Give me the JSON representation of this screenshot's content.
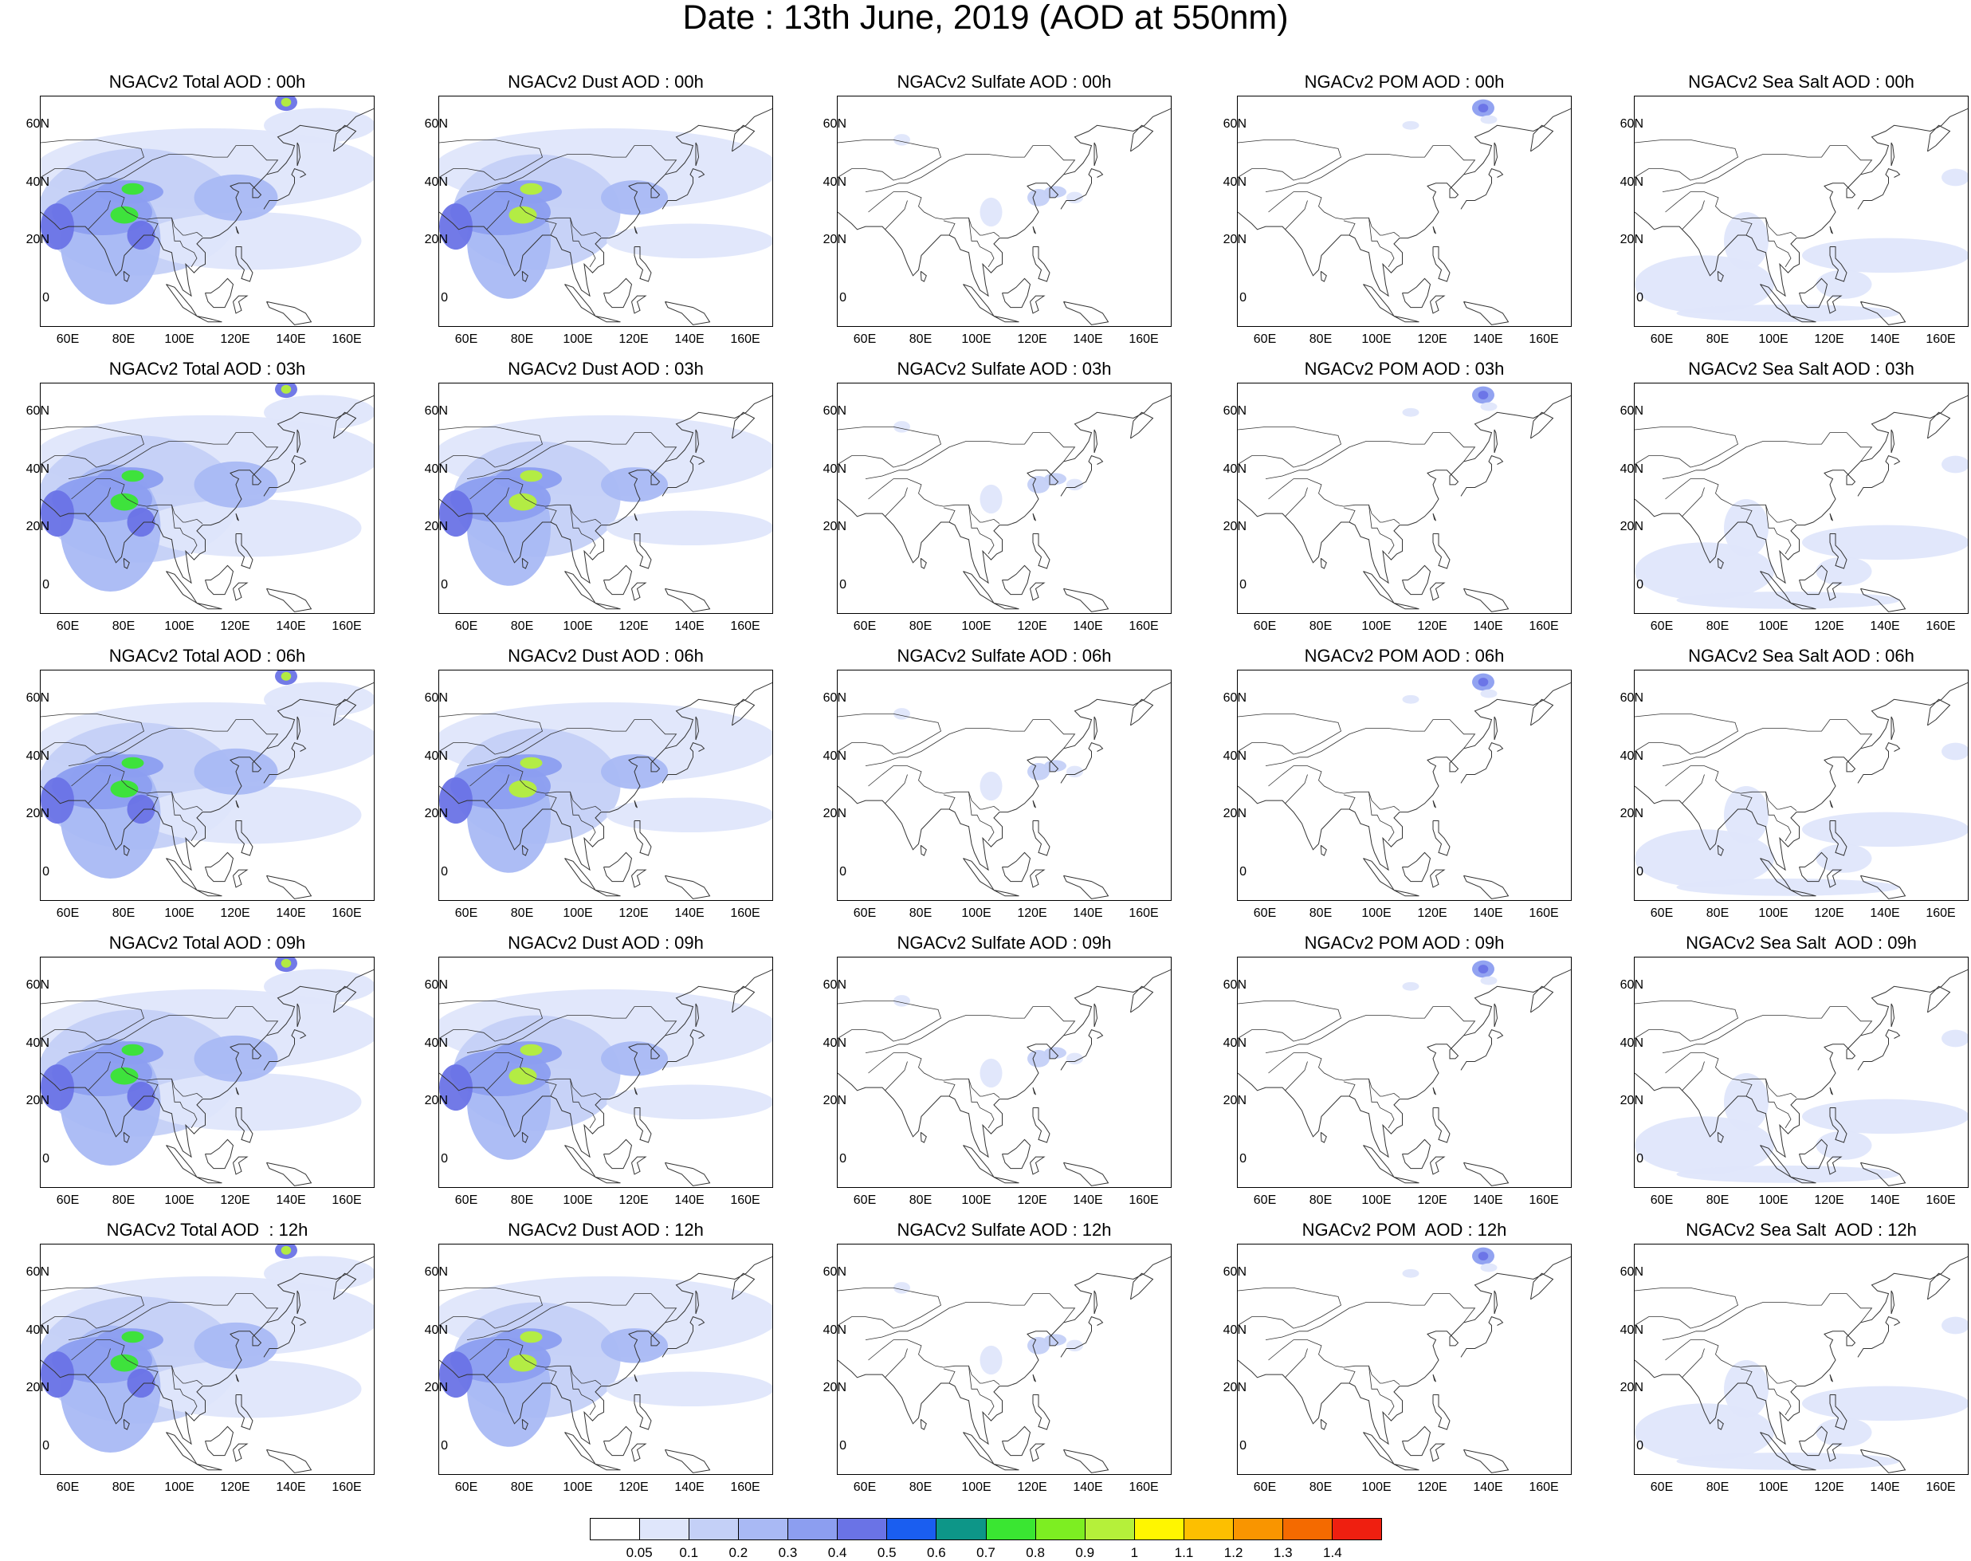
{
  "title": "Date : 13th June, 2019 (AOD at 550nm)",
  "axes": {
    "lat_ticks": [
      "60N",
      "40N",
      "20N",
      "0"
    ],
    "lat_values": [
      60,
      40,
      20,
      0
    ],
    "lon_ticks": [
      "60E",
      "80E",
      "100E",
      "120E",
      "140E",
      "160E"
    ],
    "lon_values": [
      60,
      80,
      100,
      120,
      140,
      160
    ],
    "lon_range": [
      50,
      170
    ],
    "lat_range": [
      -10,
      70
    ]
  },
  "panels": [
    {
      "title": "NGACv2 Total AOD : 00h",
      "species": "total"
    },
    {
      "title": "NGACv2 Dust AOD : 00h",
      "species": "dust"
    },
    {
      "title": "NGACv2 Sulfate AOD : 00h",
      "species": "sulfate"
    },
    {
      "title": "NGACv2 POM AOD : 00h",
      "species": "pom"
    },
    {
      "title": "NGACv2 Sea Salt AOD : 00h",
      "species": "seasalt"
    },
    {
      "title": "NGACv2 Total AOD : 03h",
      "species": "total"
    },
    {
      "title": "NGACv2 Dust AOD : 03h",
      "species": "dust"
    },
    {
      "title": "NGACv2 Sulfate AOD : 03h",
      "species": "sulfate"
    },
    {
      "title": "NGACv2 POM AOD : 03h",
      "species": "pom"
    },
    {
      "title": "NGACv2 Sea Salt AOD : 03h",
      "species": "seasalt"
    },
    {
      "title": "NGACv2 Total AOD : 06h",
      "species": "total"
    },
    {
      "title": "NGACv2 Dust AOD : 06h",
      "species": "dust"
    },
    {
      "title": "NGACv2 Sulfate AOD : 06h",
      "species": "sulfate"
    },
    {
      "title": "NGACv2 POM AOD : 06h",
      "species": "pom"
    },
    {
      "title": "NGACv2 Sea Salt AOD : 06h",
      "species": "seasalt"
    },
    {
      "title": "NGACv2 Total AOD : 09h",
      "species": "total"
    },
    {
      "title": "NGACv2 Dust AOD : 09h",
      "species": "dust"
    },
    {
      "title": "NGACv2 Sulfate AOD : 09h",
      "species": "sulfate"
    },
    {
      "title": "NGACv2 POM AOD : 09h",
      "species": "pom"
    },
    {
      "title": "NGACv2 Sea Salt  AOD : 09h",
      "species": "seasalt"
    },
    {
      "title": "NGACv2 Total AOD  : 12h",
      "species": "total"
    },
    {
      "title": "NGACv2 Dust AOD : 12h",
      "species": "dust"
    },
    {
      "title": "NGACv2 Sulfate AOD : 12h",
      "species": "sulfate"
    },
    {
      "title": "NGACv2 POM  AOD : 12h",
      "species": "pom"
    },
    {
      "title": "NGACv2 Sea Salt  AOD : 12h",
      "species": "seasalt"
    }
  ],
  "colorbar": {
    "labels": [
      "0.05",
      "0.1",
      "0.2",
      "0.3",
      "0.4",
      "0.5",
      "0.6",
      "0.7",
      "0.8",
      "0.9",
      "1",
      "1.1",
      "1.2",
      "1.3",
      "1.4"
    ],
    "colors": [
      "#ffffff",
      "#dfe6fb",
      "#c4d0f7",
      "#a9b9f4",
      "#8c9ef0",
      "#6a73e6",
      "#1a5ef0",
      "#0d9688",
      "#3ae632",
      "#7dee22",
      "#b5f03a",
      "#fff600",
      "#fdbf00",
      "#f99500",
      "#f46a00",
      "#ef1f10"
    ]
  },
  "colors": {
    "coastline": "#333333",
    "plume_light": "#dfe6fb",
    "plume_mid": "#a9b9f4",
    "plume_dark": "#6a73e6",
    "hotspot": "#7dee22"
  }
}
